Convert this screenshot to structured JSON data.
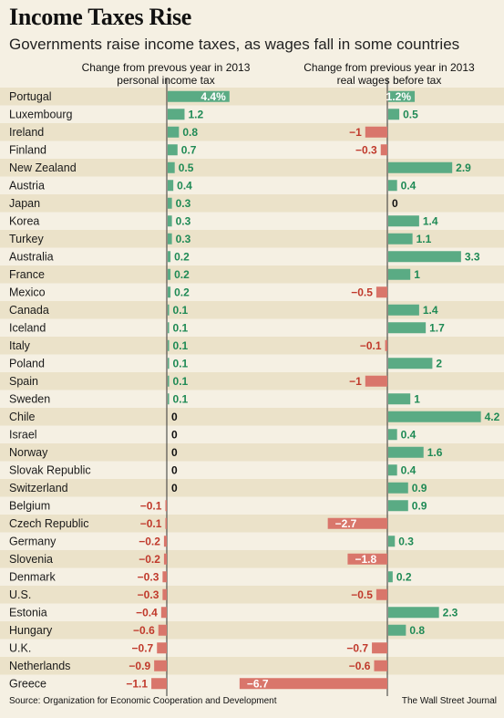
{
  "title": "Income Taxes Rise",
  "subtitle": "Governments raise income taxes, as wages fall in some countries",
  "source": "Source: Organization for Economic Cooperation and Development",
  "credit": "The Wall Street Journal",
  "colors": {
    "positive": "#5aab84",
    "negative": "#d9766b",
    "band": "#ebe2c9",
    "background": "#f5f0e3",
    "positive_text": "#1f8a55",
    "negative_text": "#c0392b"
  },
  "chart_data": {
    "type": "bar",
    "orientation": "horizontal",
    "categories": [
      "Portugal",
      "Luxembourg",
      "Ireland",
      "Finland",
      "New Zealand",
      "Austria",
      "Japan",
      "Korea",
      "Turkey",
      "Australia",
      "France",
      "Mexico",
      "Canada",
      "Iceland",
      "Italy",
      "Poland",
      "Spain",
      "Sweden",
      "Chile",
      "Israel",
      "Norway",
      "Slovak Republic",
      "Switzerland",
      "Belgium",
      "Czech Republic",
      "Germany",
      "Slovenia",
      "Denmark",
      "U.S.",
      "Estonia",
      "Hungary",
      "U.K.",
      "Netherlands",
      "Greece"
    ],
    "series": [
      {
        "name": "Change from prevous year in 2013 personal income tax",
        "values": [
          4.4,
          1.2,
          0.8,
          0.7,
          0.5,
          0.4,
          0.3,
          0.3,
          0.3,
          0.2,
          0.2,
          0.2,
          0.1,
          0.1,
          0.1,
          0.1,
          0.1,
          0.1,
          0,
          0,
          0,
          0,
          0,
          -0.1,
          -0.1,
          -0.2,
          -0.2,
          -0.3,
          -0.3,
          -0.4,
          -0.6,
          -0.7,
          -0.9,
          -1.1
        ],
        "labels": [
          "4.4%",
          "1.2",
          "0.8",
          "0.7",
          "0.5",
          "0.4",
          "0.3",
          "0.3",
          "0.3",
          "0.2",
          "0.2",
          "0.2",
          "0.1",
          "0.1",
          "0.1",
          "0.1",
          "0.1",
          "0.1",
          "0",
          "0",
          "0",
          "0",
          "0",
          "−0.1",
          "−0.1",
          "−0.2",
          "−0.2",
          "−0.3",
          "−0.3",
          "−0.4",
          "−0.6",
          "−0.7",
          "−0.9",
          "−1.1"
        ]
      },
      {
        "name": "Change from previous year in 2013 real wages before tax",
        "values": [
          1.2,
          0.5,
          -1,
          -0.3,
          2.9,
          0.4,
          0,
          1.4,
          1.1,
          3.3,
          1,
          -0.5,
          1.4,
          1.7,
          -0.1,
          2,
          -1,
          1,
          4.2,
          0.4,
          1.6,
          0.4,
          0.9,
          0.9,
          -2.7,
          0.3,
          -1.8,
          0.2,
          -0.5,
          2.3,
          0.8,
          -0.7,
          -0.6,
          -6.7
        ],
        "labels": [
          "1.2%",
          "0.5",
          "−1",
          "−0.3",
          "2.9",
          "0.4",
          "0",
          "1.4",
          "1.1",
          "3.3",
          "1",
          "−0.5",
          "1.4",
          "1.7",
          "−0.1",
          "2",
          "−1",
          "1",
          "4.2",
          "0.4",
          "1.6",
          "0.4",
          "0.9",
          "0.9",
          "−2.7",
          "0.3",
          "−1.8",
          "0.2",
          "−0.5",
          "2.3",
          "0.8",
          "−0.7",
          "−0.6",
          "−6.7"
        ]
      }
    ],
    "grid": false,
    "legend": "none"
  }
}
